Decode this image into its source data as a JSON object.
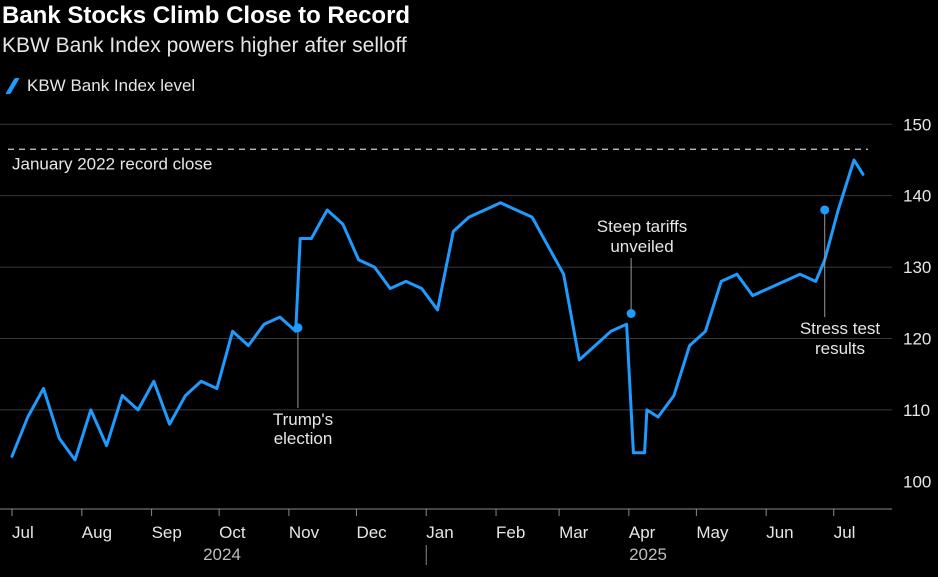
{
  "chart_data": {
    "type": "line",
    "title": "Bank Stocks Climb Close to Record",
    "subtitle": "KBW Bank Index powers higher after selloff",
    "series": [
      {
        "name": "KBW Bank Index level",
        "color": "#1e9bff",
        "x": [
          "2024-07-01",
          "2024-07-08",
          "2024-07-15",
          "2024-07-22",
          "2024-07-29",
          "2024-08-05",
          "2024-08-12",
          "2024-08-19",
          "2024-08-26",
          "2024-09-02",
          "2024-09-09",
          "2024-09-16",
          "2024-09-23",
          "2024-09-30",
          "2024-10-07",
          "2024-10-14",
          "2024-10-21",
          "2024-10-28",
          "2024-11-04",
          "2024-11-06",
          "2024-11-11",
          "2024-11-18",
          "2024-11-25",
          "2024-12-02",
          "2024-12-09",
          "2024-12-16",
          "2024-12-23",
          "2024-12-30",
          "2025-01-06",
          "2025-01-13",
          "2025-01-20",
          "2025-01-27",
          "2025-02-03",
          "2025-02-10",
          "2025-02-17",
          "2025-02-24",
          "2025-03-03",
          "2025-03-10",
          "2025-03-17",
          "2025-03-24",
          "2025-03-31",
          "2025-04-03",
          "2025-04-08",
          "2025-04-09",
          "2025-04-14",
          "2025-04-21",
          "2025-04-28",
          "2025-05-05",
          "2025-05-12",
          "2025-05-19",
          "2025-05-26",
          "2025-06-02",
          "2025-06-09",
          "2025-06-16",
          "2025-06-23",
          "2025-06-27",
          "2025-07-03",
          "2025-07-10",
          "2025-07-14"
        ],
        "values": [
          103.5,
          109,
          113,
          106,
          103,
          110,
          105,
          112,
          110,
          114,
          108,
          112,
          114,
          113,
          121,
          119,
          122,
          123,
          121,
          134,
          134,
          138,
          136,
          131,
          130,
          127,
          128,
          127,
          124,
          135,
          137,
          138,
          139,
          138,
          137,
          133,
          129,
          117,
          119,
          121,
          122,
          104,
          104,
          110,
          109,
          112,
          119,
          121,
          128,
          129,
          126,
          127,
          128,
          129,
          128,
          131,
          138,
          145,
          143
        ]
      }
    ],
    "reference_line": {
      "value": 146.5,
      "label": "January 2022 record close"
    },
    "annotations": [
      {
        "x": "2024-11-05",
        "y": 121.5,
        "label": [
          "Trump's",
          "election"
        ]
      },
      {
        "x": "2025-04-02",
        "y": 123.5,
        "label": [
          "Steep tariffs",
          "unveiled"
        ]
      },
      {
        "x": "2025-06-27",
        "y": 138,
        "label": [
          "Stress test",
          "results"
        ]
      }
    ],
    "yticks": [
      100,
      110,
      120,
      130,
      140,
      150
    ],
    "ylim": [
      98.5,
      152
    ],
    "xticks": [
      "Jul",
      "Aug",
      "Sep",
      "Oct",
      "Nov",
      "Dec",
      "Jan",
      "Feb",
      "Mar",
      "Apr",
      "May",
      "Jun",
      "Jul"
    ],
    "years": [
      "2024",
      "2025"
    ],
    "grid": true,
    "legend_position": "top-left"
  }
}
